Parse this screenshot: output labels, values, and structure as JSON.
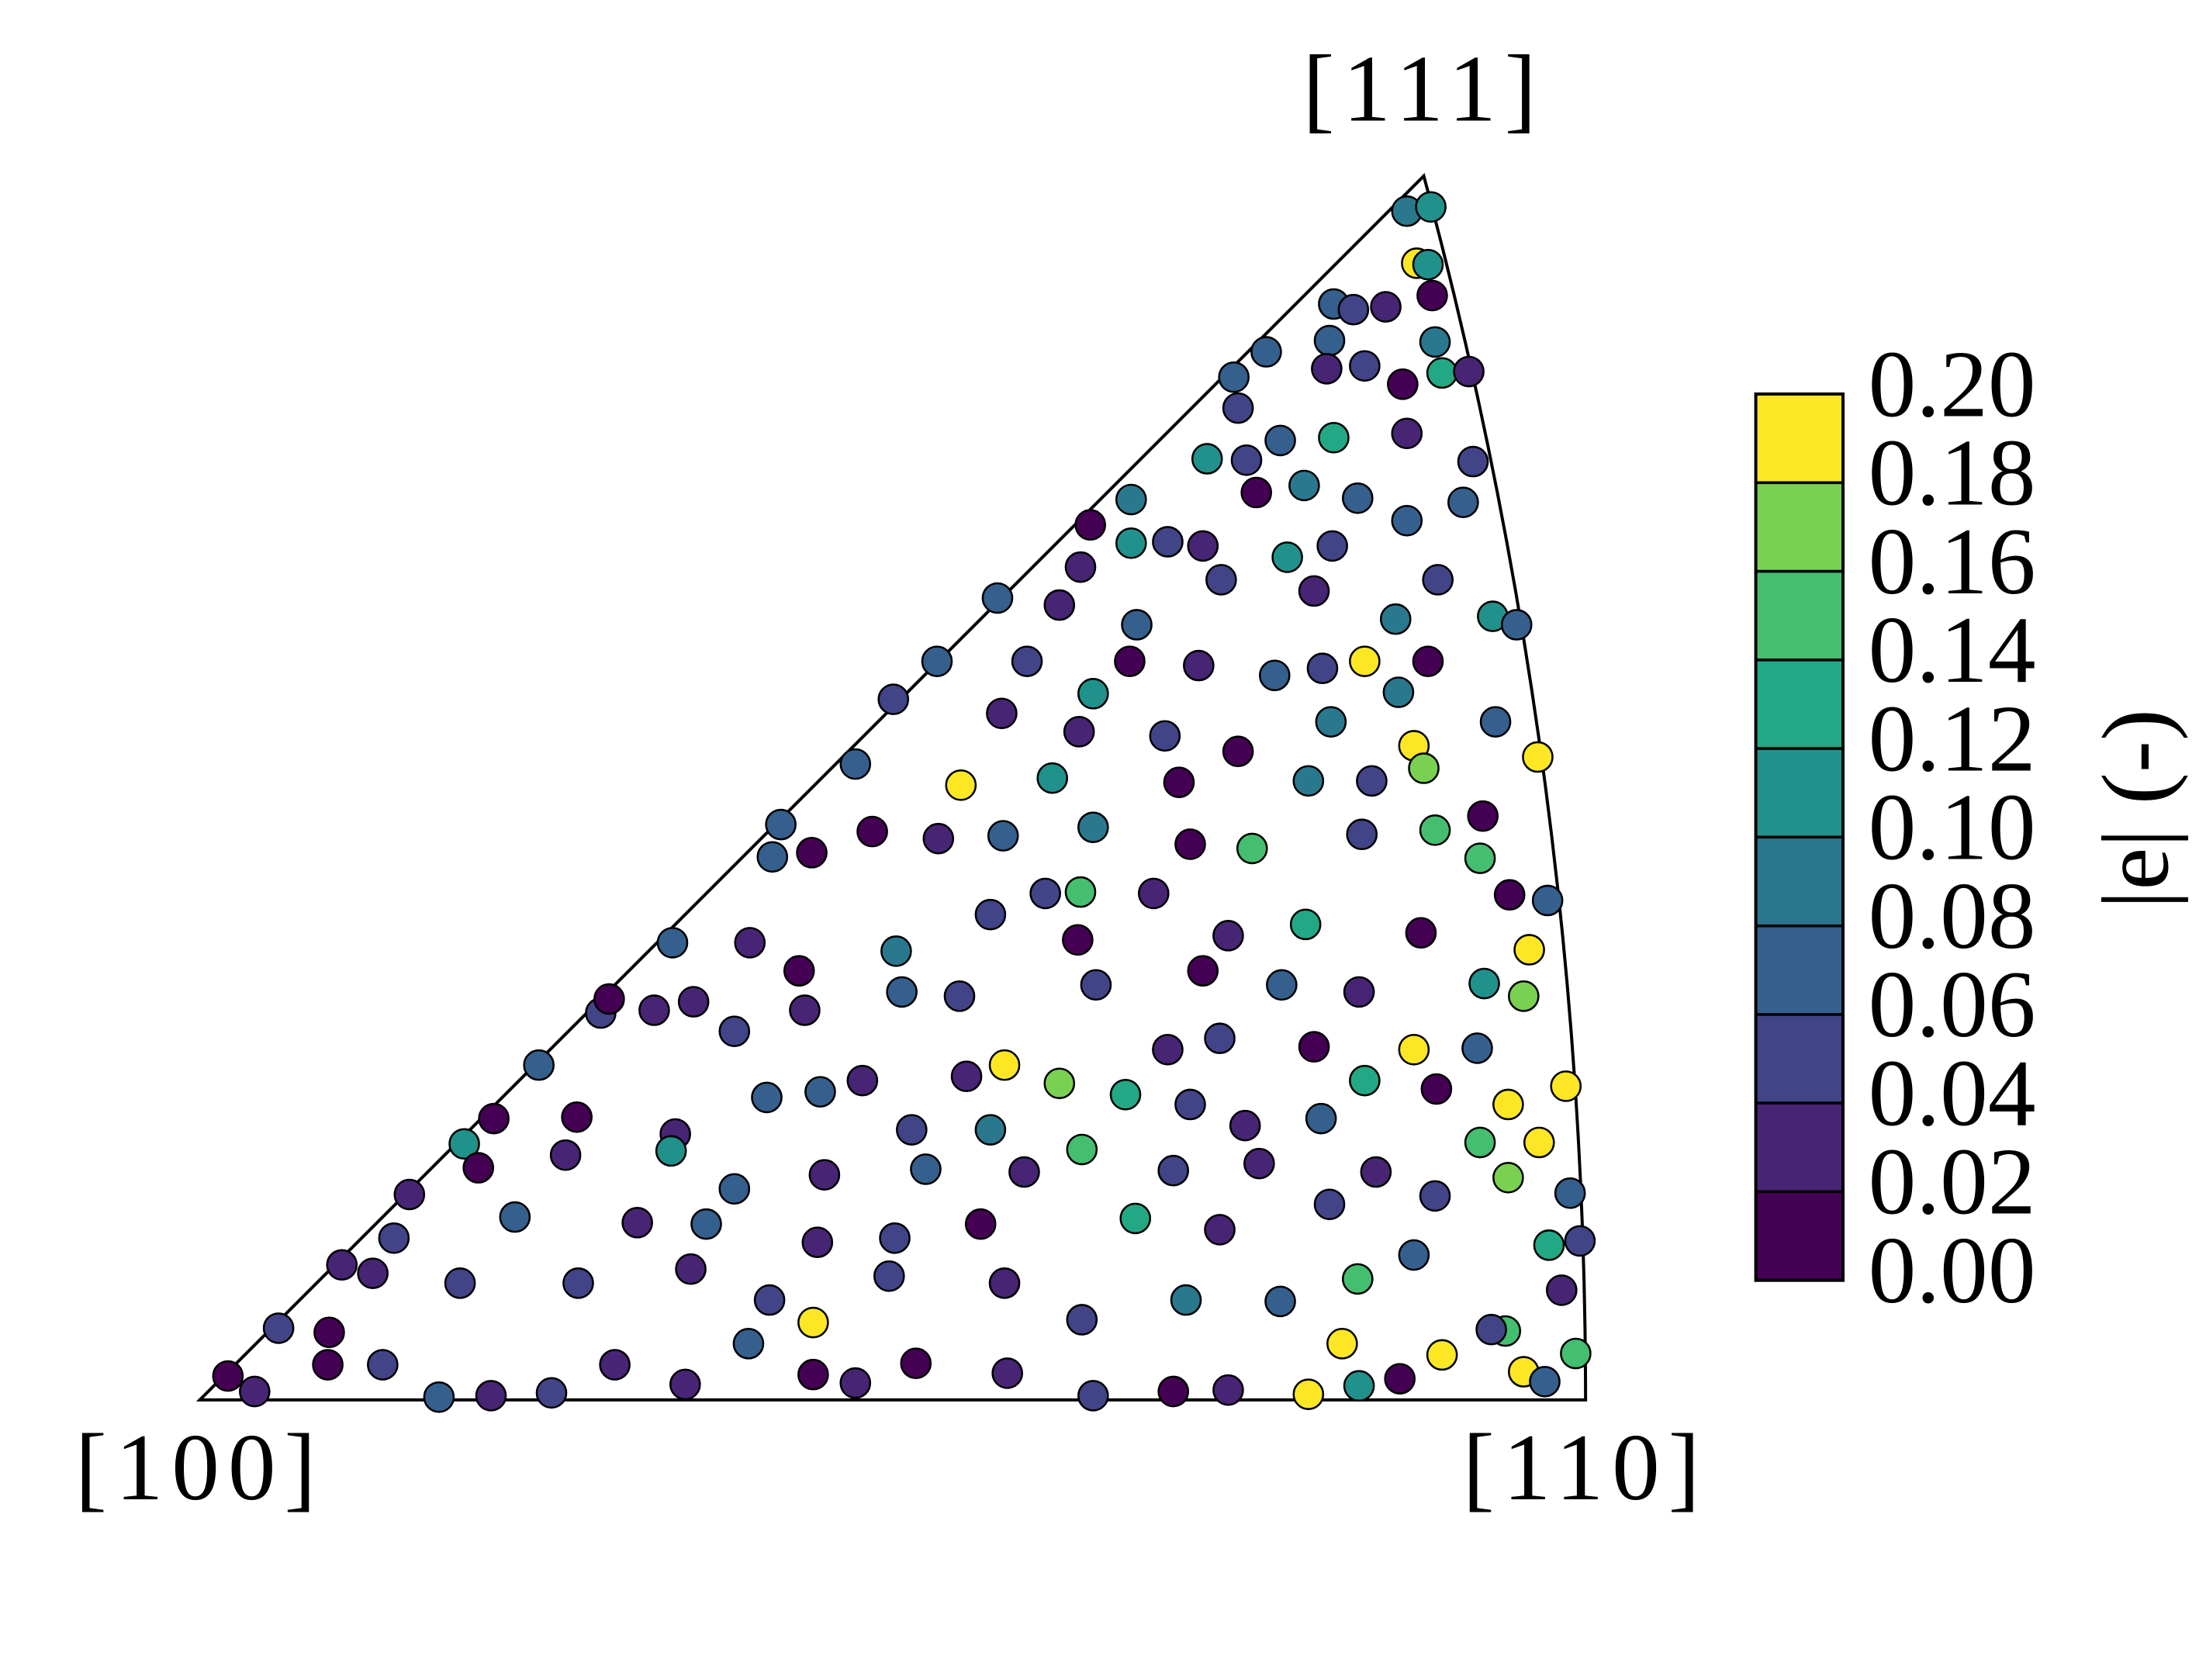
{
  "chart_data": {
    "type": "scatter",
    "annotations": [
      "[100]",
      "[110]",
      "[111]"
    ],
    "xlim": [
      0,
      985
    ],
    "ylim": [
      0,
      870
    ],
    "marker_edge_color": "#000000",
    "x": [
      858,
      875,
      865,
      873,
      876,
      806,
      820,
      843,
      803,
      878,
      801,
      828,
      883,
      855,
      902,
      758,
      735,
      738,
      768,
      806,
      858,
      905,
      716,
      744,
      785,
      823,
      898,
      633,
      662,
      688,
      713,
      751,
      805,
      858,
      662,
      626,
      773,
      880,
      919,
      567,
      611,
      666,
      726,
      792,
      828,
      873,
      850,
      936,
      524,
      588,
      635,
      661,
      710,
      764,
      798,
      852,
      921,
      951,
      863,
      870,
      493,
      570,
      625,
      686,
      738,
      804,
      466,
      541,
      606,
      696,
      788,
      833,
      912,
      878,
      413,
      478,
      525,
      571,
      635,
      704,
      748,
      826,
      910,
      958,
      407,
      435,
      601,
      626,
      678,
      931,
      336,
      391,
      426,
      495,
      562,
      624,
      731,
      786,
      868,
      945,
      285,
      291,
      351,
      430,
      499,
      540,
      637,
      713,
      769,
      824,
      913,
      941,
      241,
      323,
      380,
      471,
      545,
      572,
      611,
      658,
      688,
      725,
      792,
      863,
      908,
      971,
      209,
      188,
      268,
      338,
      403,
      441,
      506,
      562,
      627,
      704,
      743,
      797,
      828,
      879,
      930,
      952,
      149,
      198,
      260,
      335,
      380,
      444,
      516,
      586,
      692,
      753,
      836,
      910,
      930,
      974,
      101,
      138,
      224,
      311,
      360,
      439,
      494,
      555,
      665,
      725,
      803,
      878,
      959,
      981,
      56,
      92,
      123,
      185,
      269,
      349,
      405,
      436,
      490,
      572,
      627,
      701,
      768,
      823,
      863,
      928,
      968,
      20,
      39,
      91,
      130,
      170,
      207,
      250,
      295,
      345,
      390,
      436,
      466,
      509,
      574,
      635,
      692,
      731,
      788,
      824,
      853,
      883,
      918,
      941,
      956,
      978,
      812
    ],
    "y": [
      845,
      848,
      808,
      807,
      785,
      779,
      775,
      777,
      753,
      752,
      733,
      735,
      730,
      722,
      731,
      745,
      727,
      705,
      682,
      684,
      687,
      667,
      669,
      668,
      650,
      641,
      638,
      622,
      640,
      610,
      607,
      645,
      607,
      625,
      609,
      592,
      599,
      583,
      557,
      570,
      565,
      551,
      583,
      575,
      525,
      525,
      555,
      551,
      525,
      525,
      502,
      525,
      522,
      515,
      520,
      503,
      482,
      457,
      465,
      449,
      498,
      488,
      475,
      472,
      461,
      482,
      452,
      437,
      442,
      439,
      440,
      440,
      415,
      405,
      409,
      404,
      399,
      401,
      407,
      395,
      392,
      402,
      385,
      355,
      386,
      389,
      360,
      361,
      360,
      359,
      325,
      325,
      305,
      319,
      345,
      327,
      330,
      338,
      332,
      320,
      275,
      285,
      283,
      277,
      290,
      287,
      295,
      305,
      295,
      290,
      296,
      287,
      238,
      277,
      262,
      227,
      230,
      238,
      225,
      217,
      249,
      257,
      251,
      249,
      250,
      223,
      200,
      182,
      201,
      189,
      215,
      219,
      192,
      192,
      178,
      210,
      195,
      200,
      227,
      221,
      210,
      183,
      146,
      165,
      174,
      177,
      150,
      160,
      164,
      162,
      163,
      168,
      162,
      183,
      158,
      147,
      96,
      115,
      130,
      126,
      125,
      112,
      115,
      125,
      129,
      121,
      139,
      145,
      110,
      113,
      51,
      48,
      90,
      83,
      83,
      93,
      71,
      55,
      88,
      83,
      57,
      71,
      70,
      86,
      103,
      49,
      78,
      17,
      6,
      25,
      25,
      2,
      3,
      5,
      25,
      11,
      40,
      18,
      12,
      26,
      19,
      3,
      6,
      7,
      4,
      10,
      15,
      32,
      50,
      20,
      13,
      33,
      40
    ],
    "values": [
      0.09,
      0.11,
      0.19,
      0.11,
      0.01,
      0.07,
      0.05,
      0.03,
      0.07,
      0.09,
      0.03,
      0.05,
      0.13,
      0.01,
      0.03,
      0.07,
      0.07,
      0.05,
      0.07,
      0.13,
      0.03,
      0.05,
      0.11,
      0.05,
      0.09,
      0.07,
      0.07,
      0.01,
      0.09,
      0.05,
      0.03,
      0.01,
      0.05,
      0.07,
      0.11,
      0.03,
      0.11,
      0.05,
      0.11,
      0.07,
      0.03,
      0.07,
      0.05,
      0.03,
      0.19,
      0.01,
      0.09,
      0.07,
      0.07,
      0.05,
      0.11,
      0.01,
      0.03,
      0.07,
      0.05,
      0.09,
      0.07,
      0.19,
      0.19,
      0.17,
      0.05,
      0.03,
      0.03,
      0.05,
      0.01,
      0.09,
      0.07,
      0.19,
      0.11,
      0.01,
      0.09,
      0.05,
      0.01,
      0.15,
      0.07,
      0.01,
      0.03,
      0.07,
      0.09,
      0.01,
      0.15,
      0.05,
      0.15,
      0.07,
      0.07,
      0.01,
      0.05,
      0.15,
      0.03,
      0.01,
      0.07,
      0.03,
      0.01,
      0.09,
      0.05,
      0.01,
      0.03,
      0.13,
      0.01,
      0.19,
      0.05,
      0.01,
      0.03,
      0.03,
      0.07,
      0.05,
      0.05,
      0.01,
      0.07,
      0.03,
      0.11,
      0.17,
      0.07,
      0.03,
      0.05,
      0.03,
      0.03,
      0.19,
      0.17,
      0.13,
      0.03,
      0.05,
      0.01,
      0.19,
      0.07,
      0.19,
      0.01,
      0.11,
      0.01,
      0.03,
      0.07,
      0.07,
      0.05,
      0.09,
      0.15,
      0.05,
      0.03,
      0.07,
      0.13,
      0.01,
      0.19,
      0.19,
      0.03,
      0.01,
      0.03,
      0.11,
      0.07,
      0.03,
      0.07,
      0.03,
      0.05,
      0.03,
      0.03,
      0.15,
      0.17,
      0.07,
      0.03,
      0.05,
      0.07,
      0.03,
      0.07,
      0.03,
      0.05,
      0.01,
      0.13,
      0.03,
      0.05,
      0.05,
      0.13,
      0.05,
      0.05,
      0.01,
      0.03,
      0.05,
      0.05,
      0.03,
      0.05,
      0.19,
      0.05,
      0.03,
      0.05,
      0.09,
      0.07,
      0.15,
      0.07,
      0.15,
      0.03,
      0.01,
      0.03,
      0.01,
      0.05,
      0.07,
      0.03,
      0.05,
      0.03,
      0.03,
      0.07,
      0.01,
      0.03,
      0.01,
      0.03,
      0.05,
      0.01,
      0.03,
      0.19,
      0.11,
      0.01,
      0.19,
      0.05,
      0.19,
      0.07,
      0.15,
      0.19
    ],
    "colorbar": {
      "label": "|e| (-)",
      "clim": [
        0,
        0.2
      ],
      "colors": [
        "#440154",
        "#482475",
        "#414487",
        "#355f8d",
        "#2a788e",
        "#21918c",
        "#22a884",
        "#44bf70",
        "#7ad151",
        "#fde725"
      ],
      "ticks": [
        {
          "value": 0,
          "label": "0.00"
        },
        {
          "value": 0.02,
          "label": "0.02"
        },
        {
          "value": 0.04,
          "label": "0.04"
        },
        {
          "value": 0.06,
          "label": "0.06"
        },
        {
          "value": 0.08,
          "label": "0.08"
        },
        {
          "value": 0.1,
          "label": "0.10"
        },
        {
          "value": 0.12,
          "label": "0.12"
        },
        {
          "value": 0.14,
          "label": "0.14"
        },
        {
          "value": 0.16,
          "label": "0.16"
        },
        {
          "value": 0.18,
          "label": "0.18"
        },
        {
          "value": 0.2,
          "label": "0.20"
        }
      ]
    }
  }
}
